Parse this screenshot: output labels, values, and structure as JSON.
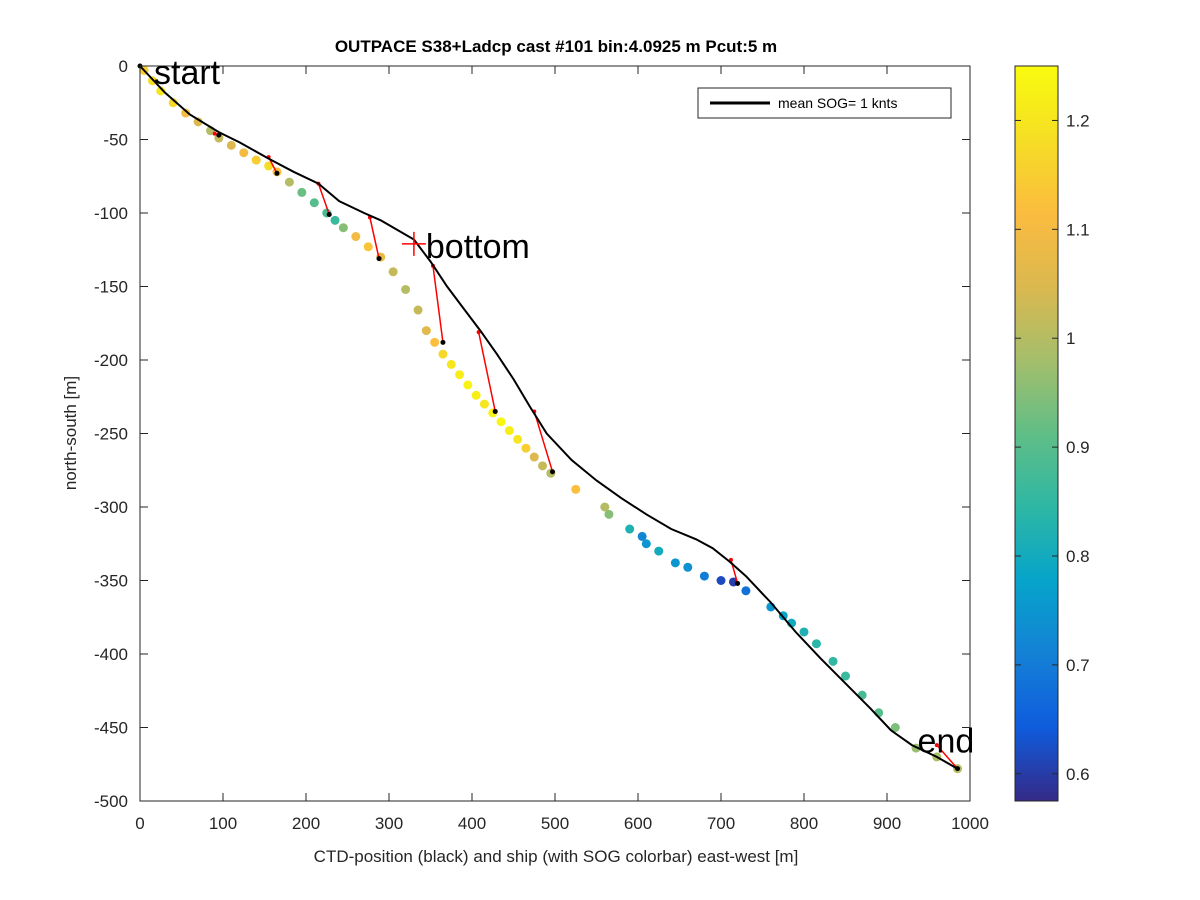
{
  "chart_data": {
    "type": "scatter",
    "title": "OUTPACE S38+Ladcp cast #101 bin:4.0925 m  Pcut:5 m",
    "xlabel": "CTD-position (black) and ship (with SOG colorbar) east-west [m]",
    "ylabel": "north-south [m]",
    "xlim": [
      0,
      1000
    ],
    "ylim": [
      -500,
      0
    ],
    "xticks": [
      0,
      100,
      200,
      300,
      400,
      500,
      600,
      700,
      800,
      900,
      1000
    ],
    "yticks": [
      0,
      -50,
      -100,
      -150,
      -200,
      -250,
      -300,
      -350,
      -400,
      -450,
      -500
    ],
    "grid": false,
    "legend": {
      "position": "top-right",
      "entries": [
        {
          "label": "mean SOG=  1 knts",
          "color": "#000000"
        }
      ]
    },
    "colorbar": {
      "label": "",
      "range": [
        0.575,
        1.25
      ],
      "ticks": [
        0.6,
        0.7,
        0.8,
        0.9,
        1,
        1.1,
        1.2
      ],
      "colormap": "parula"
    },
    "annotations": [
      {
        "text": "start",
        "x": 0,
        "y": 0
      },
      {
        "text": "bottom",
        "x": 330,
        "y": -121
      },
      {
        "text": "end",
        "x": 985,
        "y": -478
      }
    ],
    "series": [
      {
        "name": "mean SOG=  1 knts",
        "kind": "line",
        "color": "#000000",
        "x": [
          0,
          30,
          60,
          95,
          120,
          155,
          185,
          215,
          240,
          270,
          290,
          330,
          350,
          370,
          390,
          410,
          430,
          450,
          470,
          490,
          520,
          550,
          580,
          610,
          640,
          670,
          690,
          710,
          730,
          760,
          790,
          820,
          850,
          880,
          905,
          930,
          960,
          985
        ],
        "y": [
          0,
          -18,
          -33,
          -45,
          -52,
          -63,
          -72,
          -80,
          -92,
          -100,
          -105,
          -118,
          -133,
          -150,
          -165,
          -180,
          -196,
          -213,
          -232,
          -250,
          -268,
          -282,
          -294,
          -305,
          -315,
          -322,
          -328,
          -337,
          -347,
          -365,
          -385,
          -403,
          -420,
          -437,
          -452,
          -462,
          -470,
          -478
        ]
      },
      {
        "name": "",
        "kind": "scatter",
        "colorscale": "parula",
        "x": [
          5,
          15,
          25,
          40,
          55,
          70,
          85,
          95,
          110,
          125,
          140,
          155,
          165,
          180,
          195,
          210,
          225,
          235,
          245,
          260,
          275,
          290,
          305,
          320,
          335,
          345,
          355,
          365,
          375,
          385,
          395,
          405,
          415,
          425,
          435,
          445,
          455,
          465,
          475,
          485,
          495,
          525,
          560,
          565,
          590,
          605,
          610,
          625,
          645,
          660,
          680,
          700,
          715,
          730,
          760,
          775,
          785,
          800,
          815,
          835,
          850,
          870,
          890,
          910,
          935,
          960,
          985
        ],
        "y": [
          -3,
          -10,
          -17,
          -25,
          -32,
          -38,
          -44,
          -49,
          -54,
          -59,
          -64,
          -68,
          -72,
          -79,
          -86,
          -93,
          -100,
          -105,
          -110,
          -116,
          -123,
          -130,
          -140,
          -152,
          -166,
          -180,
          -188,
          -196,
          -203,
          -210,
          -217,
          -224,
          -230,
          -236,
          -242,
          -248,
          -254,
          -260,
          -266,
          -272,
          -277,
          -288,
          -300,
          -305,
          -315,
          -320,
          -325,
          -330,
          -338,
          -341,
          -347,
          -350,
          -351,
          -357,
          -368,
          -374,
          -379,
          -385,
          -393,
          -405,
          -415,
          -428,
          -440,
          -450,
          -464,
          -470,
          -478
        ],
        "sog": [
          1.15,
          1.18,
          1.2,
          1.17,
          1.1,
          1.05,
          1.0,
          1.02,
          1.05,
          1.1,
          1.15,
          1.18,
          1.12,
          1.0,
          0.92,
          0.9,
          0.88,
          0.86,
          0.95,
          1.1,
          1.13,
          1.08,
          1.02,
          1.0,
          1.02,
          1.06,
          1.12,
          1.17,
          1.2,
          1.22,
          1.23,
          1.22,
          1.2,
          1.23,
          1.24,
          1.22,
          1.2,
          1.15,
          1.05,
          1.02,
          1.0,
          1.12,
          1.0,
          0.95,
          0.82,
          0.72,
          0.75,
          0.8,
          0.75,
          0.74,
          0.7,
          0.62,
          0.6,
          0.68,
          0.75,
          0.78,
          0.8,
          0.82,
          0.84,
          0.85,
          0.86,
          0.88,
          0.9,
          0.94,
          0.97,
          0.99,
          1.0
        ]
      },
      {
        "name": "",
        "kind": "segments",
        "color": "#ff0000",
        "segments": [
          [
            [
              90,
              -46
            ],
            [
              95,
              -47
            ]
          ],
          [
            [
              155,
              -62
            ],
            [
              165,
              -73
            ]
          ],
          [
            [
              215,
              -80
            ],
            [
              228,
              -101
            ]
          ],
          [
            [
              277,
              -103
            ],
            [
              288,
              -131
            ]
          ],
          [
            [
              353,
              -136
            ],
            [
              365,
              -188
            ]
          ],
          [
            [
              408,
              -181
            ],
            [
              428,
              -235
            ]
          ],
          [
            [
              475,
              -235
            ],
            [
              497,
              -276
            ]
          ],
          [
            [
              712,
              -336
            ],
            [
              720,
              -352
            ]
          ],
          [
            [
              960,
              -462
            ],
            [
              985,
              -478
            ]
          ]
        ]
      }
    ]
  }
}
